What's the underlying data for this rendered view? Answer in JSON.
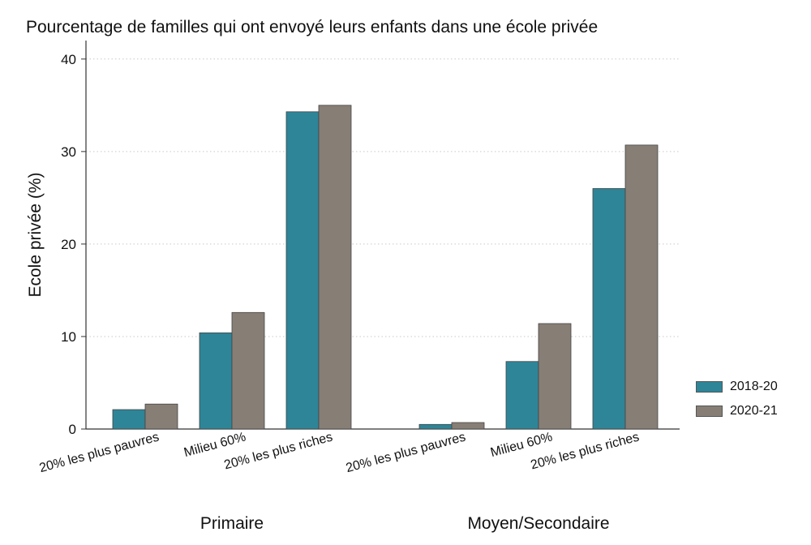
{
  "chart_data": {
    "type": "bar",
    "title": "Pourcentage de familles qui ont envoyé leurs enfants dans une école privée",
    "ylabel": "Ecole privée (%)",
    "xlabel": "",
    "ylim": [
      0,
      42
    ],
    "yticks": [
      0,
      10,
      20,
      30,
      40
    ],
    "grid": true,
    "legend_placement": "right",
    "groups": [
      {
        "name": "Primaire",
        "categories": [
          "20% les plus pauvres",
          "Milieu 60%",
          "20% les plus riches"
        ]
      },
      {
        "name": "Moyen/Secondaire",
        "categories": [
          "20% les plus pauvres",
          "Milieu 60%",
          "20% les plus riches"
        ]
      }
    ],
    "series": [
      {
        "name": "2018-20",
        "color": "#2e8598",
        "values": [
          2.1,
          10.4,
          34.3,
          0.5,
          7.3,
          26.0
        ]
      },
      {
        "name": "2020-21",
        "color": "#877e76",
        "values": [
          2.7,
          12.6,
          35.0,
          0.7,
          11.4,
          30.7
        ]
      }
    ]
  }
}
